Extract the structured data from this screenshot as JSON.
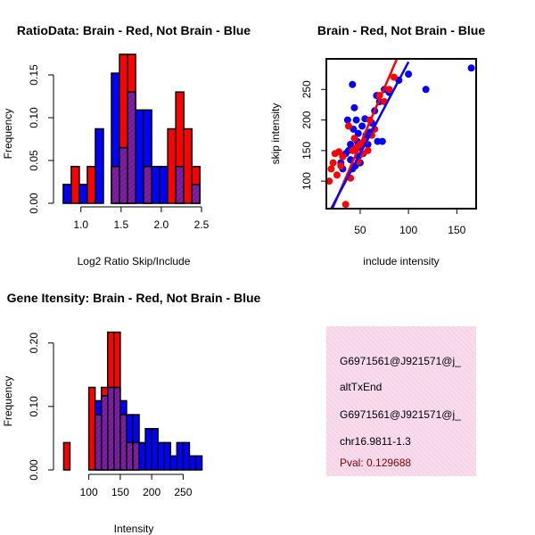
{
  "chart_data": [
    {
      "id": "ratio-hist",
      "type": "bar",
      "title": "RatioData: Brain - Red, Not Brain - Blue",
      "xlabel": "Log2 Ratio Skip/Include",
      "ylabel": "Frequency",
      "xlim": [
        0.77,
        2.6
      ],
      "ylim": [
        0,
        0.175
      ],
      "xticks": [
        1.0,
        1.5,
        2.0,
        2.5
      ],
      "xtick_labels": [
        "1.0",
        "1.5",
        "2.0",
        "2.5"
      ],
      "yticks": [
        0,
        0.05,
        0.1,
        0.15
      ],
      "ytick_labels": [
        "0.00",
        "0.05",
        "0.10",
        "0.15"
      ],
      "series": [
        {
          "name": "Brain",
          "color": "#ff0000",
          "bins": [
            {
              "x0": 0.88,
              "x1": 0.98,
              "value": 0.043
            },
            {
              "x0": 1.08,
              "x1": 1.18,
              "value": 0.043
            },
            {
              "x0": 1.38,
              "x1": 1.48,
              "value": 0.043
            },
            {
              "x0": 1.48,
              "x1": 1.58,
              "value": 0.174
            },
            {
              "x0": 1.58,
              "x1": 1.68,
              "value": 0.174
            },
            {
              "x0": 1.78,
              "x1": 1.88,
              "value": 0.043
            },
            {
              "x0": 2.08,
              "x1": 2.18,
              "value": 0.087
            },
            {
              "x0": 2.18,
              "x1": 2.28,
              "value": 0.13
            },
            {
              "x0": 2.28,
              "x1": 2.38,
              "value": 0.087
            },
            {
              "x0": 2.38,
              "x1": 2.48,
              "value": 0.043
            }
          ]
        },
        {
          "name": "Not Brain",
          "color": "#0000ff",
          "bins": [
            {
              "x0": 0.78,
              "x1": 0.88,
              "value": 0.022
            },
            {
              "x0": 0.98,
              "x1": 1.08,
              "value": 0.022
            },
            {
              "x0": 1.18,
              "x1": 1.28,
              "value": 0.087
            },
            {
              "x0": 1.38,
              "x1": 1.48,
              "value": 0.152
            },
            {
              "x0": 1.48,
              "x1": 1.58,
              "value": 0.065
            },
            {
              "x0": 1.58,
              "x1": 1.68,
              "value": 0.13
            },
            {
              "x0": 1.68,
              "x1": 1.78,
              "value": 0.109
            },
            {
              "x0": 1.78,
              "x1": 1.88,
              "value": 0.109
            },
            {
              "x0": 1.88,
              "x1": 1.98,
              "value": 0.043
            },
            {
              "x0": 1.98,
              "x1": 2.08,
              "value": 0.043
            },
            {
              "x0": 2.18,
              "x1": 2.28,
              "value": 0.043
            },
            {
              "x0": 2.38,
              "x1": 2.48,
              "value": 0.022
            }
          ]
        }
      ]
    },
    {
      "id": "scatter",
      "type": "scatter",
      "title": "Brain - Red, Not Brain - Blue",
      "xlabel": "include intensity",
      "ylabel": "skip intensity",
      "xlim": [
        15,
        170
      ],
      "ylim": [
        55,
        300
      ],
      "xticks": [
        50,
        100,
        150
      ],
      "xtick_labels": [
        "50",
        "100",
        "150"
      ],
      "yticks": [
        100,
        150,
        200,
        250
      ],
      "ytick_labels": [
        "100",
        "150",
        "200",
        "250"
      ],
      "series": [
        {
          "name": "Brain",
          "color": "#ff0000",
          "points": [
            [
              18,
              100
            ],
            [
              20,
              120
            ],
            [
              22,
              130
            ],
            [
              24,
              145
            ],
            [
              26,
              110
            ],
            [
              28,
              148
            ],
            [
              30,
              125
            ],
            [
              32,
              140
            ],
            [
              35,
              62
            ],
            [
              38,
              190
            ],
            [
              40,
              105
            ],
            [
              42,
              150
            ],
            [
              44,
              170
            ],
            [
              46,
              155
            ],
            [
              48,
              132
            ],
            [
              50,
              160
            ],
            [
              52,
              145
            ],
            [
              55,
              165
            ],
            [
              58,
              150
            ],
            [
              60,
              200
            ],
            [
              62,
              175
            ],
            [
              65,
              185
            ],
            [
              70,
              240
            ],
            [
              75,
              230
            ],
            [
              80,
              250
            ],
            [
              85,
              270
            ]
          ]
        },
        {
          "name": "Not Brain",
          "color": "#0000ff",
          "points": [
            [
              30,
              130
            ],
            [
              32,
              120
            ],
            [
              35,
              145
            ],
            [
              37,
              200
            ],
            [
              38,
              150
            ],
            [
              40,
              135
            ],
            [
              40,
              160
            ],
            [
              42,
              258
            ],
            [
              42,
              120
            ],
            [
              43,
              185
            ],
            [
              44,
              220
            ],
            [
              45,
              125
            ],
            [
              45,
              150
            ],
            [
              46,
              200
            ],
            [
              47,
              165
            ],
            [
              48,
              140
            ],
            [
              48,
              178
            ],
            [
              50,
              130
            ],
            [
              50,
              155
            ],
            [
              52,
              190
            ],
            [
              53,
              145
            ],
            [
              55,
              202
            ],
            [
              56,
              175
            ],
            [
              58,
              160
            ],
            [
              60,
              180
            ],
            [
              62,
              195
            ],
            [
              65,
              215
            ],
            [
              67,
              240
            ],
            [
              68,
              165
            ],
            [
              70,
              230
            ],
            [
              73,
              165
            ],
            [
              75,
              250
            ],
            [
              80,
              245
            ],
            [
              90,
              265
            ],
            [
              100,
              275
            ],
            [
              118,
              250
            ],
            [
              165,
              285
            ]
          ]
        }
      ],
      "fit_lines": [
        {
          "name": "Brain fit",
          "color": "#ff0000",
          "x": [
            20,
            88
          ],
          "y": [
            50,
            300
          ]
        },
        {
          "name": "Not Brain fit",
          "color": "#0000ff",
          "x": [
            15,
            100
          ],
          "y": [
            40,
            295
          ]
        }
      ]
    },
    {
      "id": "intensity-hist",
      "type": "bar",
      "title": "Gene Itensity: Brain - Red, Not Brain - Blue",
      "xlabel": "Intensity",
      "ylabel": "Frequency",
      "xlim": [
        58,
        292
      ],
      "ylim": [
        0,
        0.222
      ],
      "xticks": [
        100,
        150,
        200,
        250
      ],
      "xtick_labels": [
        "100",
        "150",
        "200",
        "250"
      ],
      "yticks": [
        0,
        0.1,
        0.2
      ],
      "ytick_labels": [
        "0.00",
        "0.10",
        "0.20"
      ],
      "series": [
        {
          "name": "Brain",
          "color": "#ff0000",
          "bins": [
            {
              "x0": 60,
              "x1": 70,
              "value": 0.043
            },
            {
              "x0": 100,
              "x1": 110,
              "value": 0.13
            },
            {
              "x0": 110,
              "x1": 120,
              "value": 0.087
            },
            {
              "x0": 120,
              "x1": 130,
              "value": 0.13
            },
            {
              "x0": 130,
              "x1": 140,
              "value": 0.217
            },
            {
              "x0": 140,
              "x1": 150,
              "value": 0.217
            },
            {
              "x0": 150,
              "x1": 160,
              "value": 0.087
            },
            {
              "x0": 160,
              "x1": 170,
              "value": 0.043
            },
            {
              "x0": 170,
              "x1": 180,
              "value": 0.043
            }
          ]
        },
        {
          "name": "Not Brain",
          "color": "#0000ff",
          "bins": [
            {
              "x0": 110,
              "x1": 120,
              "value": 0.109
            },
            {
              "x0": 120,
              "x1": 130,
              "value": 0.117
            },
            {
              "x0": 130,
              "x1": 140,
              "value": 0.13
            },
            {
              "x0": 140,
              "x1": 150,
              "value": 0.13
            },
            {
              "x0": 150,
              "x1": 160,
              "value": 0.109
            },
            {
              "x0": 160,
              "x1": 170,
              "value": 0.087
            },
            {
              "x0": 170,
              "x1": 180,
              "value": 0.087
            },
            {
              "x0": 180,
              "x1": 190,
              "value": 0.043
            },
            {
              "x0": 190,
              "x1": 200,
              "value": 0.065
            },
            {
              "x0": 200,
              "x1": 210,
              "value": 0.065
            },
            {
              "x0": 210,
              "x1": 220,
              "value": 0.043
            },
            {
              "x0": 220,
              "x1": 230,
              "value": 0.043
            },
            {
              "x0": 230,
              "x1": 240,
              "value": 0.022
            },
            {
              "x0": 240,
              "x1": 250,
              "value": 0.043
            },
            {
              "x0": 250,
              "x1": 260,
              "value": 0.043
            },
            {
              "x0": 260,
              "x1": 270,
              "value": 0.022
            },
            {
              "x0": 270,
              "x1": 280,
              "value": 0.022
            }
          ]
        }
      ]
    }
  ],
  "info_panel": {
    "line1": "G6971561@J921571@j_",
    "line2": "altTxEnd",
    "line3": "G6971561@J921571@j_",
    "line4": "chr16.9811-1.3",
    "pval": "Pval: 0.129688",
    "background_color": "#f8dceb",
    "pval_color": "#8b0000"
  }
}
